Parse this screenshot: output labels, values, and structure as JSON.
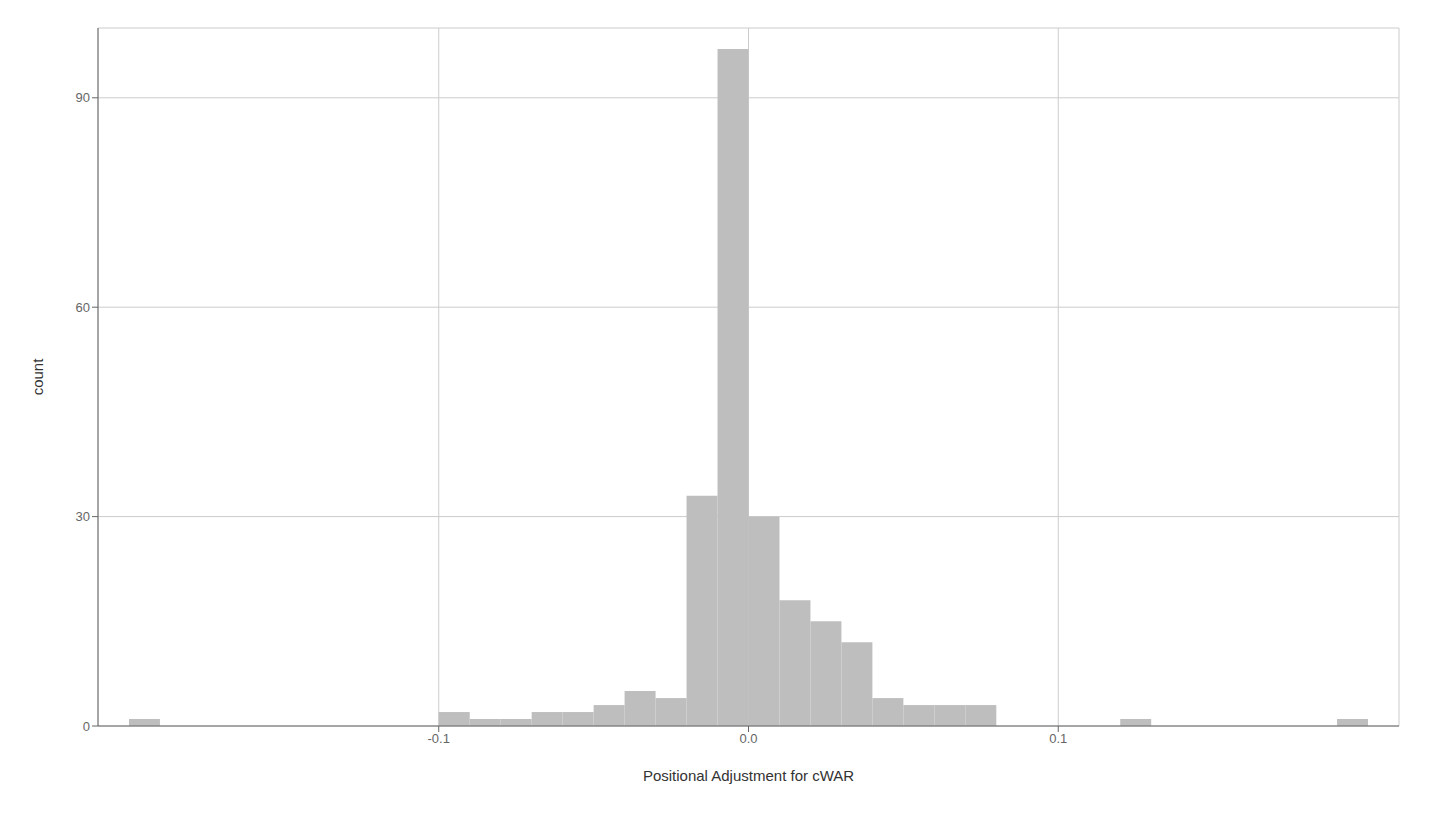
{
  "chart_data": {
    "type": "histogram",
    "xlabel": "Positional Adjustment for cWAR",
    "ylabel": "count",
    "bins": [
      -0.2,
      -0.19,
      -0.18,
      -0.17,
      -0.16,
      -0.15,
      -0.14,
      -0.13,
      -0.12,
      -0.11,
      -0.1,
      -0.09,
      -0.08,
      -0.07,
      -0.06,
      -0.05,
      -0.04,
      -0.03,
      -0.02,
      -0.01,
      0.0,
      0.01,
      0.02,
      0.03,
      0.04,
      0.05,
      0.06,
      0.07,
      0.08,
      0.09,
      0.1,
      0.11,
      0.12,
      0.13,
      0.14,
      0.15,
      0.16,
      0.17,
      0.18,
      0.19,
      0.2
    ],
    "values": [
      1,
      0,
      0,
      0,
      0,
      0,
      0,
      0,
      0,
      0,
      2,
      1,
      1,
      2,
      2,
      3,
      5,
      4,
      33,
      97,
      30,
      18,
      15,
      12,
      4,
      3,
      3,
      3,
      0,
      0,
      0,
      0,
      1,
      0,
      0,
      0,
      0,
      0,
      0,
      1
    ],
    "color": "#BEBEBE",
    "xlim": [
      -0.21,
      0.21
    ],
    "xticks": [
      -0.1,
      {
        "value": 0,
        "label": "0.0"
      },
      0.1
    ],
    "ylim": [
      0,
      100
    ],
    "yticks": [
      0,
      30,
      60,
      90
    ],
    "grid": true
  }
}
